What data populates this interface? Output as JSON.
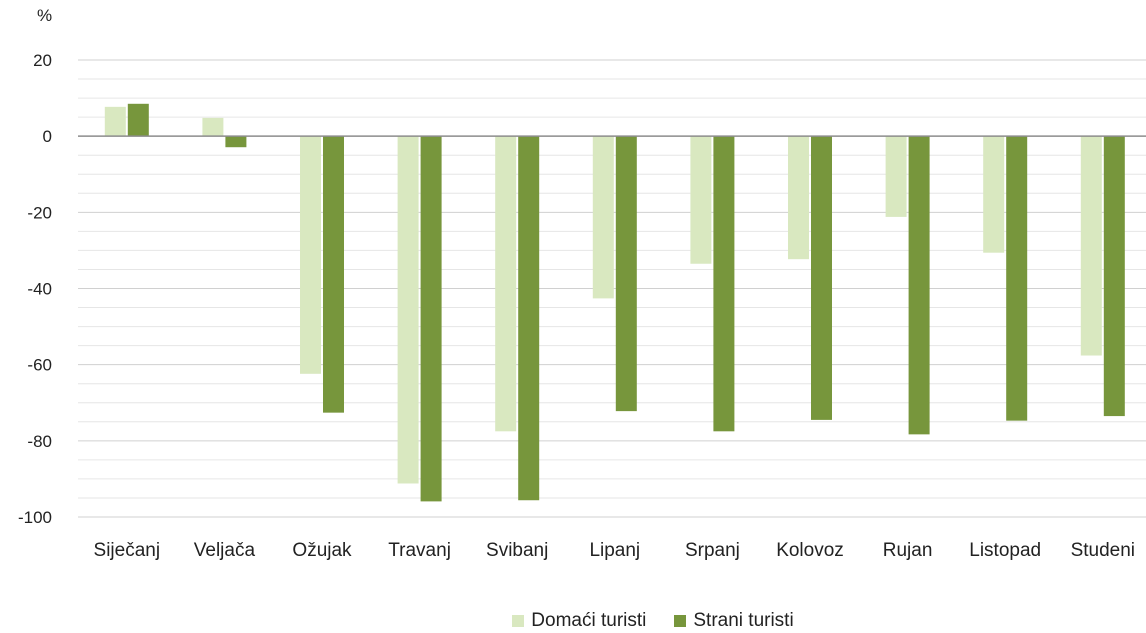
{
  "chart_data": {
    "type": "bar",
    "unit": "%",
    "categories": [
      "Siječanj",
      "Veljača",
      "Ožujak",
      "Travanj",
      "Svibanj",
      "Lipanj",
      "Srpanj",
      "Kolovoz",
      "Rujan",
      "Listopad",
      "Studeni"
    ],
    "series": [
      {
        "name": "Domaći turisti",
        "color": "#d9e8c0",
        "values": [
          7.7,
          4.8,
          -62.4,
          -91.2,
          -77.5,
          -42.6,
          -33.5,
          -32.3,
          -21.2,
          -30.6,
          -57.6
        ]
      },
      {
        "name": "Strani turisti",
        "color": "#77963c",
        "values": [
          8.5,
          -2.9,
          -72.6,
          -95.9,
          -95.6,
          -72.2,
          -77.5,
          -74.5,
          -78.3,
          -74.7,
          -73.5
        ]
      }
    ],
    "ylim": [
      -100,
      20
    ],
    "yticks": [
      20,
      0,
      -20,
      -40,
      -60,
      -80,
      -100
    ],
    "grid": true,
    "legend_position": "bottom"
  }
}
